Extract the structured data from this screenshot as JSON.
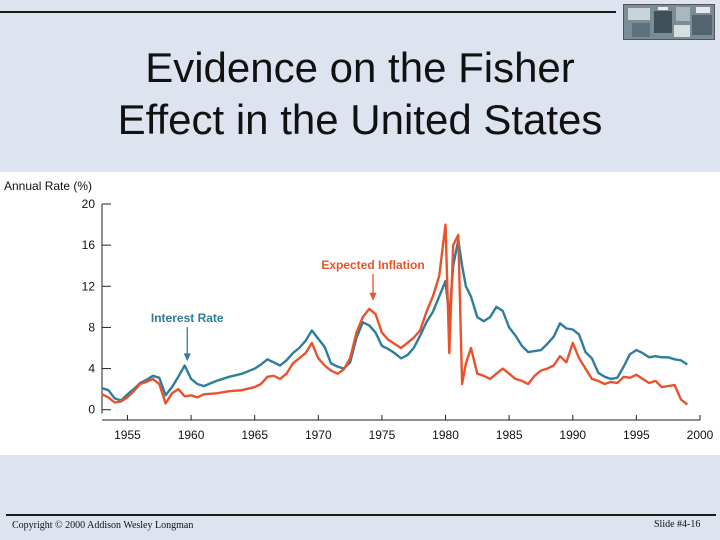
{
  "slide": {
    "title_line1": "Evidence on the Fisher",
    "title_line2": "Effect in the United States",
    "copyright": "Copyright © 2000 Addison Wesley Longman",
    "slide_number": "Slide #4-16"
  },
  "colors": {
    "interest_rate": "#2e7d9b",
    "expected_inflation": "#e8532b",
    "background": "#dde4f0"
  },
  "chart_data": {
    "type": "line",
    "title": "",
    "ylabel": "Annual Rate (%)",
    "xlabel": "",
    "xlim": [
      1953,
      2000
    ],
    "ylim": [
      -1,
      20
    ],
    "xticks": [
      1955,
      1960,
      1965,
      1970,
      1975,
      1980,
      1985,
      1990,
      1995,
      2000
    ],
    "yticks": [
      0,
      4,
      8,
      12,
      16,
      20
    ],
    "grid": false,
    "annotations": [
      {
        "text": "Interest Rate",
        "series": "Interest Rate",
        "x": 1959.7,
        "y": 4.6
      },
      {
        "text": "Expected Inflation",
        "series": "Expected Inflation",
        "x": 1974.3,
        "y": 10.5
      }
    ],
    "series": [
      {
        "name": "Interest Rate",
        "x": [
          1953,
          1953.5,
          1954,
          1954.5,
          1955,
          1955.5,
          1956,
          1956.5,
          1957,
          1957.5,
          1958,
          1958.5,
          1959,
          1959.5,
          1960,
          1960.5,
          1961,
          1962,
          1963,
          1964,
          1965,
          1965.5,
          1966,
          1966.5,
          1967,
          1967.5,
          1968,
          1968.5,
          1969,
          1969.5,
          1970,
          1970.5,
          1971,
          1971.5,
          1972,
          1972.5,
          1973,
          1973.5,
          1974,
          1974.5,
          1975,
          1975.5,
          1976,
          1976.5,
          1977,
          1977.5,
          1978,
          1978.5,
          1979,
          1979.5,
          1980,
          1980.3,
          1980.6,
          1981,
          1981.3,
          1981.6,
          1982,
          1982.5,
          1983,
          1983.5,
          1984,
          1984.5,
          1985,
          1985.5,
          1986,
          1986.5,
          1987,
          1987.5,
          1988,
          1988.5,
          1989,
          1989.5,
          1990,
          1990.5,
          1991,
          1991.5,
          1992,
          1992.5,
          1993,
          1993.5,
          1994,
          1994.5,
          1995,
          1995.5,
          1996,
          1996.5,
          1997,
          1997.5,
          1998,
          1998.5,
          1999
        ],
        "values": [
          2.1,
          1.9,
          1.1,
          0.9,
          1.5,
          2.0,
          2.6,
          2.9,
          3.3,
          3.1,
          1.4,
          2.2,
          3.2,
          4.3,
          3.0,
          2.5,
          2.3,
          2.8,
          3.2,
          3.5,
          4.0,
          4.4,
          4.9,
          4.6,
          4.3,
          4.8,
          5.5,
          6.0,
          6.7,
          7.7,
          6.9,
          6.1,
          4.5,
          4.2,
          4.0,
          4.6,
          7.0,
          8.5,
          8.2,
          7.5,
          6.2,
          5.9,
          5.5,
          5.0,
          5.3,
          6.0,
          7.2,
          8.5,
          9.5,
          11.0,
          12.5,
          9.0,
          14.0,
          16.5,
          14.0,
          12.0,
          11.0,
          9.0,
          8.6,
          9.0,
          10.0,
          9.6,
          8.0,
          7.2,
          6.2,
          5.6,
          5.7,
          5.8,
          6.4,
          7.1,
          8.4,
          7.9,
          7.8,
          7.3,
          5.6,
          5.0,
          3.6,
          3.2,
          3.0,
          3.1,
          4.2,
          5.4,
          5.8,
          5.5,
          5.1,
          5.2,
          5.1,
          5.1,
          4.9,
          4.8,
          4.4
        ]
      },
      {
        "name": "Expected Inflation",
        "x": [
          1953,
          1953.5,
          1954,
          1954.5,
          1955,
          1955.5,
          1956,
          1956.5,
          1957,
          1957.5,
          1958,
          1958.5,
          1959,
          1959.5,
          1960,
          1960.5,
          1961,
          1962,
          1963,
          1964,
          1965,
          1965.5,
          1966,
          1966.5,
          1967,
          1967.5,
          1968,
          1968.5,
          1969,
          1969.5,
          1970,
          1970.5,
          1971,
          1971.5,
          1972,
          1972.5,
          1973,
          1973.5,
          1974,
          1974.5,
          1975,
          1975.5,
          1976,
          1976.5,
          1977,
          1977.5,
          1978,
          1978.5,
          1979,
          1979.5,
          1980,
          1980.3,
          1980.6,
          1981,
          1981.3,
          1981.6,
          1982,
          1982.5,
          1983,
          1983.5,
          1984,
          1984.5,
          1985,
          1985.5,
          1986,
          1986.5,
          1987,
          1987.5,
          1988,
          1988.5,
          1989,
          1989.5,
          1990,
          1990.5,
          1991,
          1991.5,
          1992,
          1992.5,
          1993,
          1993.5,
          1994,
          1994.5,
          1995,
          1995.5,
          1996,
          1996.5,
          1997,
          1997.5,
          1998,
          1998.5,
          1999
        ],
        "values": [
          1.5,
          1.2,
          0.7,
          0.8,
          1.2,
          1.8,
          2.5,
          2.7,
          3.0,
          2.5,
          0.6,
          1.6,
          2.0,
          1.3,
          1.4,
          1.2,
          1.5,
          1.6,
          1.8,
          1.9,
          2.2,
          2.5,
          3.2,
          3.3,
          3.0,
          3.5,
          4.5,
          5.0,
          5.5,
          6.5,
          5.0,
          4.3,
          3.8,
          3.5,
          3.9,
          5.0,
          7.5,
          9.0,
          9.8,
          9.3,
          7.5,
          6.8,
          6.4,
          6.0,
          6.5,
          7.0,
          7.7,
          9.5,
          11.0,
          13.0,
          18.0,
          5.5,
          16.0,
          17.0,
          2.5,
          4.5,
          6.0,
          3.5,
          3.3,
          3.0,
          3.5,
          4.0,
          3.5,
          3.0,
          2.8,
          2.5,
          3.3,
          3.8,
          4.0,
          4.3,
          5.2,
          4.6,
          6.5,
          5.0,
          4.0,
          3.0,
          2.8,
          2.5,
          2.7,
          2.6,
          3.2,
          3.1,
          3.4,
          3.0,
          2.6,
          2.8,
          2.2,
          2.3,
          2.4,
          1.0,
          0.5
        ]
      }
    ]
  }
}
